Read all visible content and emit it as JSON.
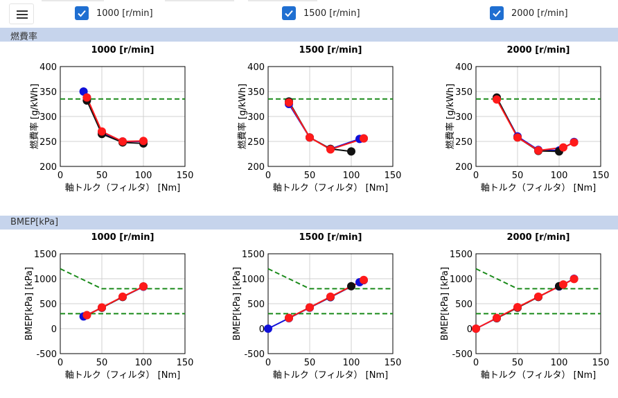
{
  "toolbar": {
    "menu_icon": "hamburger-icon",
    "checkboxes": [
      {
        "label": "1000 [r/min]",
        "checked": true
      },
      {
        "label": "1500 [r/min]",
        "checked": true
      },
      {
        "label": "2000 [r/min]",
        "checked": true
      }
    ]
  },
  "sections": {
    "fuel": {
      "title": "燃費率"
    },
    "bmep": {
      "title": "BMEP[kPa]"
    }
  },
  "colors": {
    "accent": "#1f6fd1",
    "section_bg": "#c6d4ec",
    "series_a": "#1010d8",
    "series_b": "#111111",
    "series_c": "#ff1a1a",
    "limit": "#1a8a1a"
  },
  "chart_data": [
    {
      "type": "line",
      "group": "fuel",
      "title": "1000 [r/min]",
      "xlabel": "軸トルク（フィルタ） [Nm]",
      "ylabel": "燃費率 [g/kWh]",
      "xlim": [
        0,
        150
      ],
      "ylim": [
        200,
        400
      ],
      "xticks": [
        0,
        50,
        100,
        150
      ],
      "yticks": [
        200,
        250,
        300,
        350,
        400
      ],
      "series": [
        {
          "name": "blue",
          "x": [
            28,
            32,
            50,
            75,
            100
          ],
          "y": [
            350,
            338,
            268,
            250,
            250
          ]
        },
        {
          "name": "black",
          "x": [
            32,
            50,
            75,
            100
          ],
          "y": [
            332,
            265,
            248,
            246
          ]
        },
        {
          "name": "red",
          "x": [
            32,
            50,
            75,
            100
          ],
          "y": [
            338,
            270,
            250,
            251
          ]
        }
      ],
      "hlines": [
        335
      ]
    },
    {
      "type": "line",
      "group": "fuel",
      "title": "1500 [r/min]",
      "xlabel": "軸トルク（フィルタ） [Nm]",
      "ylabel": "燃費率 [g/kWh]",
      "xlim": [
        0,
        150
      ],
      "ylim": [
        200,
        400
      ],
      "xticks": [
        0,
        50,
        100,
        150
      ],
      "yticks": [
        200,
        250,
        300,
        350,
        400
      ],
      "series": [
        {
          "name": "blue",
          "x": [
            25,
            50,
            75,
            110,
            115
          ],
          "y": [
            325,
            258,
            235,
            255,
            256
          ]
        },
        {
          "name": "black",
          "x": [
            25,
            50,
            75,
            100
          ],
          "y": [
            330,
            258,
            235,
            230
          ]
        },
        {
          "name": "red",
          "x": [
            25,
            50,
            75,
            115
          ],
          "y": [
            328,
            258,
            234,
            256
          ]
        }
      ],
      "hlines": [
        335
      ]
    },
    {
      "type": "line",
      "group": "fuel",
      "title": "2000 [r/min]",
      "xlabel": "軸トルク（フィルタ） [Nm]",
      "ylabel": "燃費率 [g/kWh]",
      "xlim": [
        0,
        150
      ],
      "ylim": [
        200,
        400
      ],
      "xticks": [
        0,
        50,
        100,
        150
      ],
      "yticks": [
        200,
        250,
        300,
        350,
        400
      ],
      "series": [
        {
          "name": "blue",
          "x": [
            25,
            50,
            75,
            100,
            118
          ],
          "y": [
            337,
            260,
            233,
            232,
            249
          ]
        },
        {
          "name": "black",
          "x": [
            25,
            50,
            75,
            100
          ],
          "y": [
            338,
            258,
            231,
            230
          ]
        },
        {
          "name": "red",
          "x": [
            25,
            50,
            75,
            105,
            118
          ],
          "y": [
            334,
            258,
            232,
            238,
            248
          ]
        }
      ],
      "hlines": [
        335
      ]
    },
    {
      "type": "line",
      "group": "bmep",
      "title": "1000 [r/min]",
      "xlabel": "軸トルク（フィルタ） [Nm]",
      "ylabel": "BMEP[kPa] [kPa]",
      "xlim": [
        0,
        150
      ],
      "ylim": [
        -500,
        1500
      ],
      "xticks": [
        0,
        50,
        100,
        150
      ],
      "yticks": [
        -500,
        0,
        500,
        1000,
        1500
      ],
      "series": [
        {
          "name": "blue",
          "x": [
            28,
            50,
            75,
            100
          ],
          "y": [
            245,
            420,
            635,
            840
          ]
        },
        {
          "name": "black",
          "x": [
            32,
            50,
            75,
            100
          ],
          "y": [
            270,
            420,
            635,
            845
          ]
        },
        {
          "name": "red",
          "x": [
            32,
            50,
            75,
            100
          ],
          "y": [
            270,
            425,
            640,
            845
          ]
        }
      ],
      "limit_lines": [
        {
          "x": [
            0,
            50,
            150
          ],
          "y": [
            1200,
            800,
            800
          ]
        },
        {
          "x": [
            0,
            150
          ],
          "y": [
            300,
            300
          ]
        }
      ]
    },
    {
      "type": "line",
      "group": "bmep",
      "title": "1500 [r/min]",
      "xlabel": "軸トルク（フィルタ） [Nm]",
      "ylabel": "BMEP[kPa] [kPa]",
      "xlim": [
        0,
        150
      ],
      "ylim": [
        -500,
        1500
      ],
      "xticks": [
        0,
        50,
        100,
        150
      ],
      "yticks": [
        -500,
        0,
        500,
        1000,
        1500
      ],
      "series": [
        {
          "name": "blue",
          "x": [
            0,
            25,
            50,
            75,
            110,
            115
          ],
          "y": [
            0,
            210,
            420,
            630,
            930,
            970
          ]
        },
        {
          "name": "black",
          "x": [
            25,
            50,
            75,
            100
          ],
          "y": [
            215,
            425,
            635,
            850
          ]
        },
        {
          "name": "red",
          "x": [
            25,
            50,
            75,
            115
          ],
          "y": [
            215,
            425,
            640,
            975
          ]
        }
      ],
      "limit_lines": [
        {
          "x": [
            0,
            50,
            150
          ],
          "y": [
            1200,
            800,
            800
          ]
        },
        {
          "x": [
            0,
            150
          ],
          "y": [
            300,
            300
          ]
        }
      ]
    },
    {
      "type": "line",
      "group": "bmep",
      "title": "2000 [r/min]",
      "xlabel": "軸トルク（フィルタ） [Nm]",
      "ylabel": "BMEP[kPa] [kPa]",
      "xlim": [
        0,
        150
      ],
      "ylim": [
        -500,
        1500
      ],
      "xticks": [
        0,
        50,
        100,
        150
      ],
      "yticks": [
        -500,
        0,
        500,
        1000,
        1500
      ],
      "series": [
        {
          "name": "blue",
          "x": [
            0,
            25,
            50,
            75,
            100,
            118
          ],
          "y": [
            0,
            210,
            425,
            635,
            845,
            1000
          ]
        },
        {
          "name": "black",
          "x": [
            25,
            50,
            75,
            100
          ],
          "y": [
            210,
            420,
            635,
            850
          ]
        },
        {
          "name": "red",
          "x": [
            0,
            25,
            50,
            75,
            105,
            118
          ],
          "y": [
            0,
            215,
            430,
            640,
            885,
            995
          ]
        }
      ],
      "limit_lines": [
        {
          "x": [
            0,
            50,
            150
          ],
          "y": [
            1200,
            800,
            800
          ]
        },
        {
          "x": [
            0,
            150
          ],
          "y": [
            300,
            300
          ]
        }
      ]
    }
  ]
}
